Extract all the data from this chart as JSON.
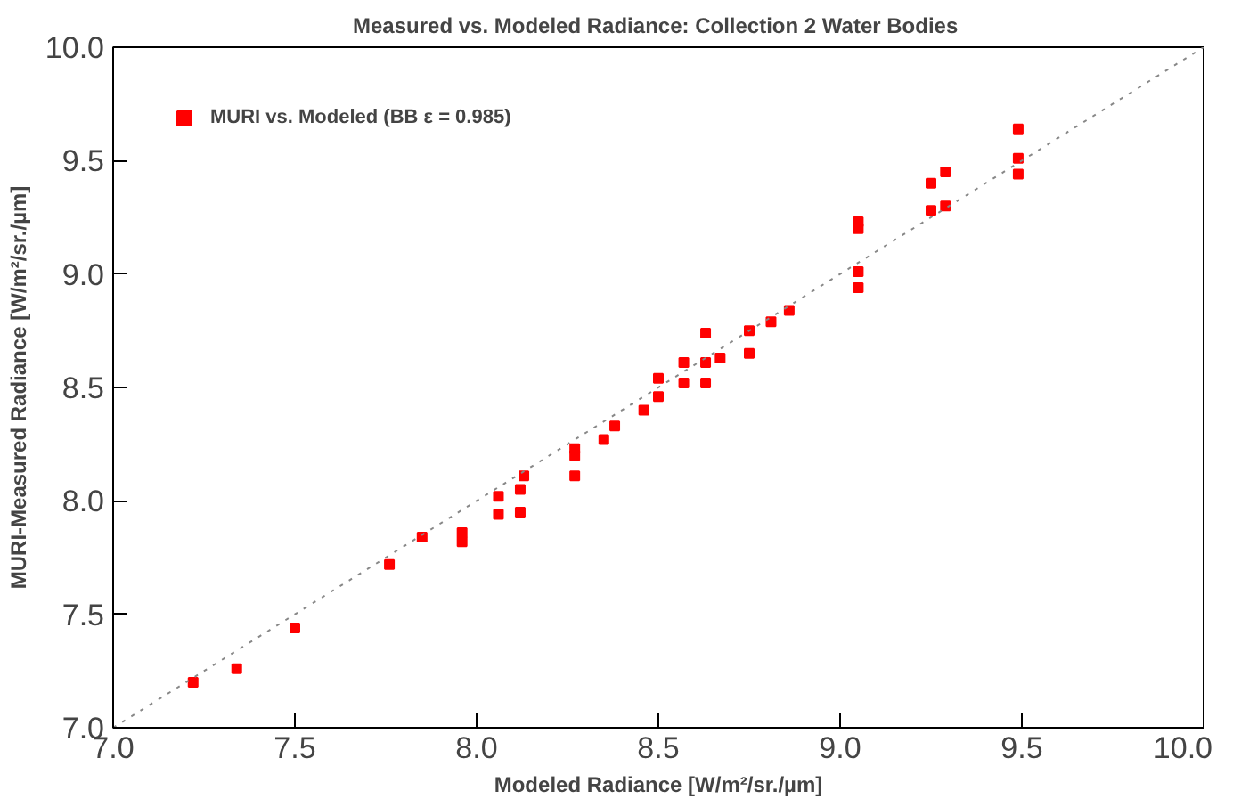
{
  "chart_data": {
    "type": "scatter",
    "title": "Measured vs. Modeled Radiance:  Collection 2 Water Bodies",
    "xlabel": "Modeled Radiance [W/m²/sr./µm]",
    "ylabel": "MURI-Measured Radiance [W/m²/sr./µm]",
    "xlim": [
      7.0,
      10.0
    ],
    "ylim": [
      7.0,
      10.0
    ],
    "xticks": [
      {
        "value": 7.0,
        "label": "7.0"
      },
      {
        "value": 7.5,
        "label": "7.5"
      },
      {
        "value": 8.0,
        "label": "8.0"
      },
      {
        "value": 8.5,
        "label": "8.5"
      },
      {
        "value": 9.0,
        "label": "9.0"
      },
      {
        "value": 9.5,
        "label": "9.5"
      },
      {
        "value": 10.0,
        "label": "10.0"
      }
    ],
    "yticks": [
      {
        "value": 7.0,
        "label": "7.0"
      },
      {
        "value": 7.5,
        "label": "7.5"
      },
      {
        "value": 8.0,
        "label": "8.0"
      },
      {
        "value": 8.5,
        "label": "8.5"
      },
      {
        "value": 9.0,
        "label": "9.0"
      },
      {
        "value": 9.5,
        "label": "9.5"
      },
      {
        "value": 10.0,
        "label": "10.0"
      }
    ],
    "grid": false,
    "legend": "top left",
    "marker": "square",
    "series": [
      {
        "name": "MURI vs. Modeled (BB ε = 0.985)",
        "color": "#ff0000",
        "x": [
          7.22,
          7.34,
          7.5,
          7.76,
          7.85,
          7.96,
          7.96,
          8.06,
          8.06,
          8.12,
          8.12,
          8.13,
          8.27,
          8.27,
          8.27,
          8.35,
          8.38,
          8.46,
          8.5,
          8.5,
          8.57,
          8.57,
          8.63,
          8.63,
          8.63,
          8.67,
          8.75,
          8.75,
          8.81,
          8.86,
          9.05,
          9.05,
          9.05,
          9.05,
          9.25,
          9.25,
          9.29,
          9.29,
          9.49,
          9.49,
          9.49
        ],
        "values": [
          7.2,
          7.26,
          7.44,
          7.72,
          7.84,
          7.86,
          7.82,
          8.02,
          7.94,
          8.05,
          7.95,
          8.11,
          8.23,
          8.11,
          8.2,
          8.27,
          8.33,
          8.4,
          8.46,
          8.54,
          8.61,
          8.52,
          8.74,
          8.61,
          8.52,
          8.63,
          8.75,
          8.65,
          8.79,
          8.84,
          9.23,
          9.2,
          9.01,
          8.94,
          9.4,
          9.28,
          9.45,
          9.3,
          9.64,
          9.51,
          9.44
        ]
      },
      {
        "type": "line",
        "color": "#888888",
        "line_style": "dotted",
        "marker": "none",
        "x": [
          7.0,
          10.0
        ],
        "values": [
          7.0,
          10.0
        ]
      }
    ]
  }
}
